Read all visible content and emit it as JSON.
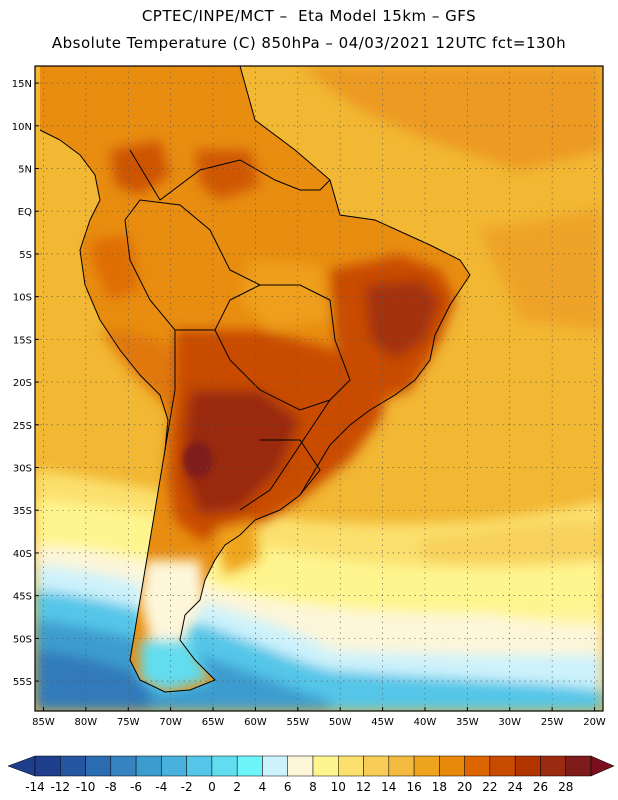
{
  "header": {
    "line1": "CPTEC/INPE/MCT –  Eta Model 15km – GFS",
    "line2": "Absolute Temperature (C) 850hPa – 04/03/2021 12UTC fct=130h"
  },
  "map": {
    "lon_range": [
      -86,
      -19
    ],
    "lat_range": [
      -58.5,
      17
    ],
    "lat_ticks": [
      {
        "value": 15,
        "label": "15N"
      },
      {
        "value": 10,
        "label": "10N"
      },
      {
        "value": 5,
        "label": "5N"
      },
      {
        "value": 0,
        "label": "EQ"
      },
      {
        "value": -5,
        "label": "5S"
      },
      {
        "value": -10,
        "label": "10S"
      },
      {
        "value": -15,
        "label": "15S"
      },
      {
        "value": -20,
        "label": "20S"
      },
      {
        "value": -25,
        "label": "25S"
      },
      {
        "value": -30,
        "label": "30S"
      },
      {
        "value": -35,
        "label": "35S"
      },
      {
        "value": -40,
        "label": "40S"
      },
      {
        "value": -45,
        "label": "45S"
      },
      {
        "value": -50,
        "label": "50S"
      },
      {
        "value": -55,
        "label": "55S"
      }
    ],
    "lon_ticks": [
      {
        "value": -85,
        "label": "85W"
      },
      {
        "value": -80,
        "label": "80W"
      },
      {
        "value": -75,
        "label": "75W"
      },
      {
        "value": -70,
        "label": "70W"
      },
      {
        "value": -65,
        "label": "65W"
      },
      {
        "value": -60,
        "label": "60W"
      },
      {
        "value": -55,
        "label": "55W"
      },
      {
        "value": -50,
        "label": "50W"
      },
      {
        "value": -45,
        "label": "45W"
      },
      {
        "value": -40,
        "label": "40W"
      },
      {
        "value": -35,
        "label": "35W"
      },
      {
        "value": -30,
        "label": "30W"
      },
      {
        "value": -25,
        "label": "25W"
      },
      {
        "value": -20,
        "label": "20W"
      }
    ]
  },
  "colorbar": {
    "labels": [
      "-14",
      "-12",
      "-10",
      "-8",
      "-6",
      "-4",
      "-2",
      "0",
      "2",
      "4",
      "6",
      "8",
      "10",
      "12",
      "14",
      "16",
      "18",
      "20",
      "22",
      "24",
      "26",
      "28"
    ],
    "colors": [
      "#1f3f8c",
      "#2556a0",
      "#2c6cb0",
      "#3584c0",
      "#3d9ccf",
      "#48b1dc",
      "#55c6e8",
      "#62dcef",
      "#6df5f9",
      "#cdf2fb",
      "#fdf6d9",
      "#fef58f",
      "#fbe06e",
      "#f7cd57",
      "#f2ba3f",
      "#efa41f",
      "#e8890c",
      "#dd6500",
      "#c94b00",
      "#b23500",
      "#9a2a10",
      "#7f1b1b"
    ],
    "low_color": "#1f3f8c",
    "high_color": "#7a0f1f"
  },
  "colors": {
    "ocean_base": "#f2b733",
    "land_base": "#e8900f"
  }
}
